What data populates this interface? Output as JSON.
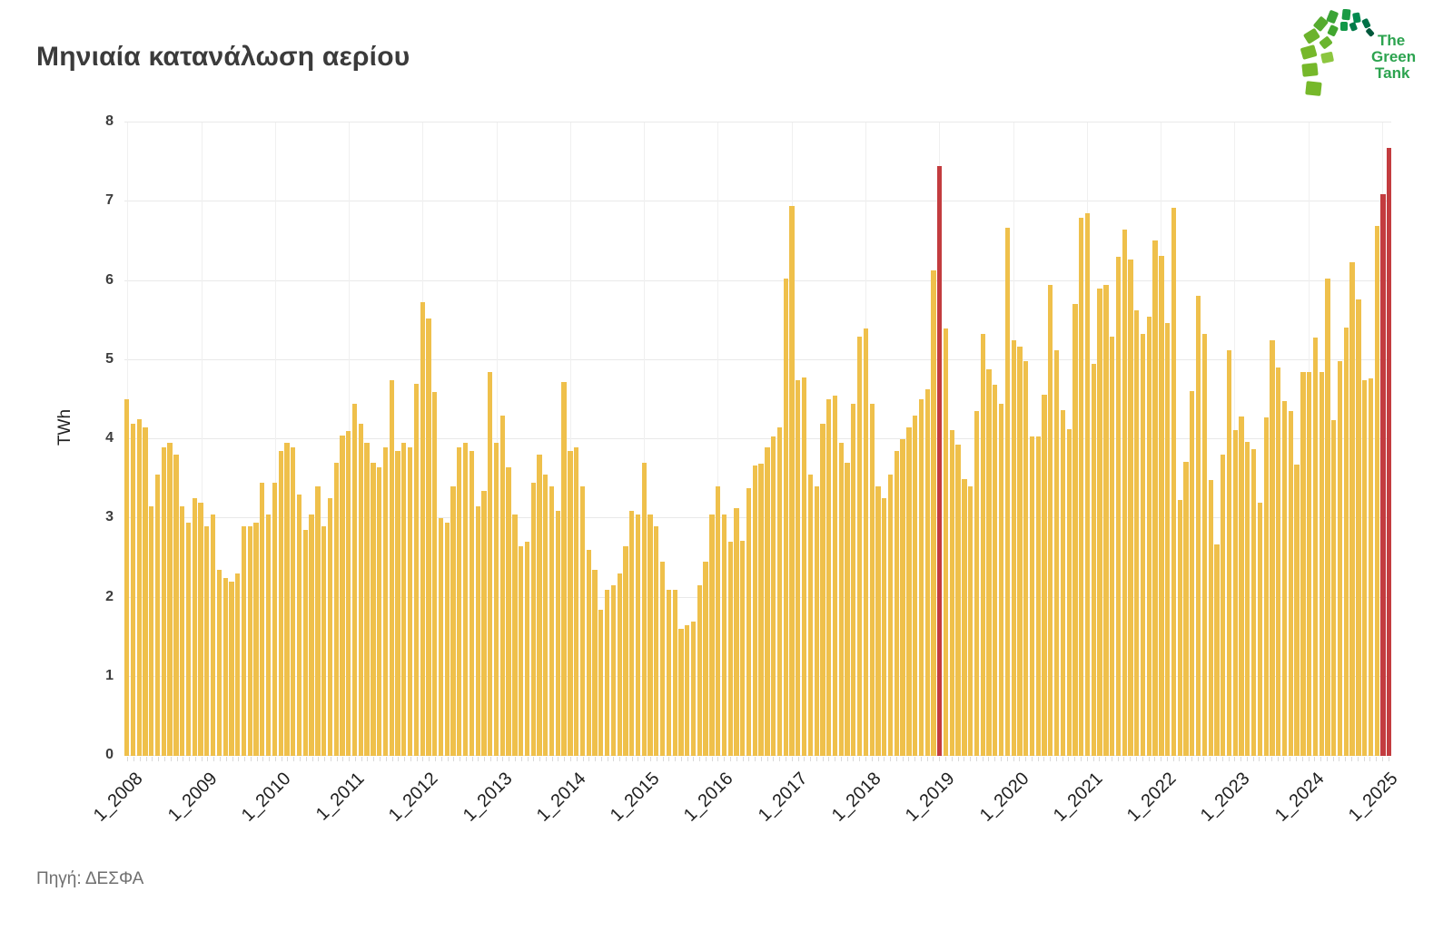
{
  "title": "Μηνιαία κατανάλωση αερίου",
  "source": "Πηγή: ΔΕΣΦΑ",
  "logo": {
    "line1": "The",
    "line2": "Green",
    "line3": "Tank"
  },
  "chart_data": {
    "type": "bar",
    "title": "Μηνιαία κατανάλωση αερίου",
    "xlabel": "",
    "ylabel": "TWh",
    "ylim": [
      0,
      8
    ],
    "yticks": [
      0,
      1,
      2,
      3,
      4,
      5,
      6,
      7,
      8
    ],
    "grid": "horizontal-and-year-vertical",
    "legend": "none",
    "bar_color": "#efc04b",
    "highlight_color": "#c33c3f",
    "start_month_label": "1_2008",
    "end_month_label": "2_2025",
    "x_tick_labels": [
      "1_2008",
      "1_2009",
      "1_2010",
      "1_2011",
      "1_2012",
      "1_2013",
      "1_2014",
      "1_2015",
      "1_2016",
      "1_2017",
      "1_2018",
      "1_2019",
      "1_2020",
      "1_2021",
      "1_2022",
      "1_2023",
      "1_2024",
      "1_2025"
    ],
    "highlighted_month_indices": [
      132,
      204,
      205
    ],
    "highlighted_month_labels": [
      "1_2019",
      "1_2025",
      "2_2025"
    ],
    "series": [
      {
        "name": "Μηνιαία κατανάλωση αερίου (TWh)",
        "values": [
          4.5,
          4.2,
          4.25,
          4.15,
          3.15,
          3.55,
          3.9,
          3.95,
          3.8,
          3.15,
          2.95,
          3.25,
          3.2,
          2.9,
          3.05,
          2.35,
          2.25,
          2.2,
          2.3,
          2.9,
          2.9,
          2.95,
          3.45,
          3.05,
          3.45,
          3.85,
          3.95,
          3.9,
          3.3,
          2.85,
          3.05,
          3.4,
          2.9,
          3.25,
          3.7,
          4.05,
          4.1,
          4.45,
          4.2,
          3.95,
          3.7,
          3.65,
          3.9,
          4.75,
          3.85,
          3.95,
          3.9,
          4.7,
          5.73,
          5.52,
          4.6,
          3.0,
          2.95,
          3.4,
          3.9,
          3.95,
          3.85,
          3.15,
          3.35,
          4.85,
          3.95,
          4.3,
          3.65,
          3.05,
          2.65,
          2.7,
          3.45,
          3.8,
          3.55,
          3.4,
          3.1,
          4.72,
          3.85,
          3.9,
          3.4,
          2.6,
          2.35,
          1.85,
          2.1,
          2.15,
          2.3,
          2.65,
          3.1,
          3.05,
          3.7,
          3.05,
          2.9,
          2.45,
          2.1,
          2.1,
          1.6,
          1.65,
          1.7,
          2.15,
          2.45,
          3.05,
          3.4,
          3.05,
          2.7,
          3.13,
          2.72,
          3.38,
          3.67,
          3.69,
          3.9,
          4.03,
          4.15,
          6.03,
          6.95,
          4.75,
          4.78,
          3.55,
          3.4,
          4.2,
          4.5,
          4.55,
          3.95,
          3.7,
          4.45,
          5.3,
          5.4,
          4.45,
          3.4,
          3.25,
          3.55,
          3.85,
          4.0,
          4.15,
          4.3,
          4.5,
          4.63,
          6.13,
          7.45,
          5.4,
          4.12,
          3.93,
          3.5,
          3.4,
          4.35,
          5.33,
          4.88,
          4.69,
          4.45,
          6.67,
          5.25,
          5.17,
          4.99,
          4.03,
          4.03,
          4.56,
          5.95,
          5.12,
          4.37,
          4.13,
          5.71,
          6.8,
          6.85,
          4.95,
          5.9,
          5.95,
          5.3,
          6.3,
          6.65,
          6.27,
          5.63,
          5.33,
          5.55,
          6.51,
          6.32,
          5.47,
          6.92,
          3.23,
          3.71,
          4.61,
          5.81,
          5.33,
          3.49,
          2.67,
          3.81,
          5.12,
          4.11,
          4.29,
          3.97,
          3.87,
          3.2,
          4.27,
          5.25,
          4.91,
          4.48,
          4.35,
          3.68,
          4.85,
          4.85,
          5.28,
          4.85,
          6.03,
          4.24,
          4.99,
          5.41,
          6.24,
          5.76,
          4.75,
          4.77,
          6.69,
          7.09,
          7.68
        ]
      }
    ]
  }
}
